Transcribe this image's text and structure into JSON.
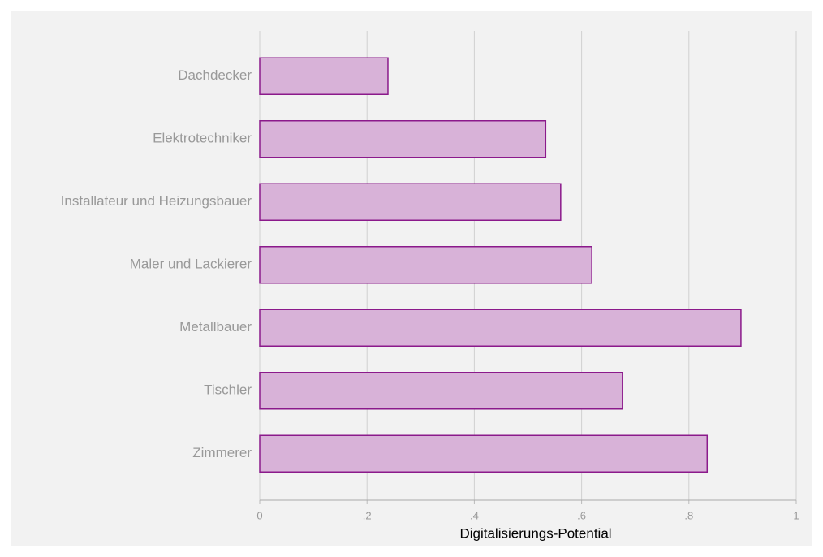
{
  "chart_data": {
    "type": "bar",
    "orientation": "horizontal",
    "xlabel": "Digitalisierungs-Potential",
    "categories": [
      "Dachdecker",
      "Elektrotechniker",
      "Installateur und Heizungsbauer",
      "Maler und Lackierer",
      "Metallbauer",
      "Tischler",
      "Zimmerer"
    ],
    "values": [
      0.239,
      0.533,
      0.561,
      0.619,
      0.897,
      0.676,
      0.834
    ],
    "color": "#d8b2d8",
    "edgecolor": "#8b1a8b",
    "xlim": [
      0,
      1
    ],
    "xticks": [
      0,
      {
        "value": 0.2,
        "label": ".2"
      },
      {
        "value": 0.4,
        "label": ".4"
      },
      {
        "value": 0.6,
        "label": ".6"
      },
      {
        "value": 0.8,
        "label": ".8"
      },
      1
    ],
    "grid": true
  }
}
